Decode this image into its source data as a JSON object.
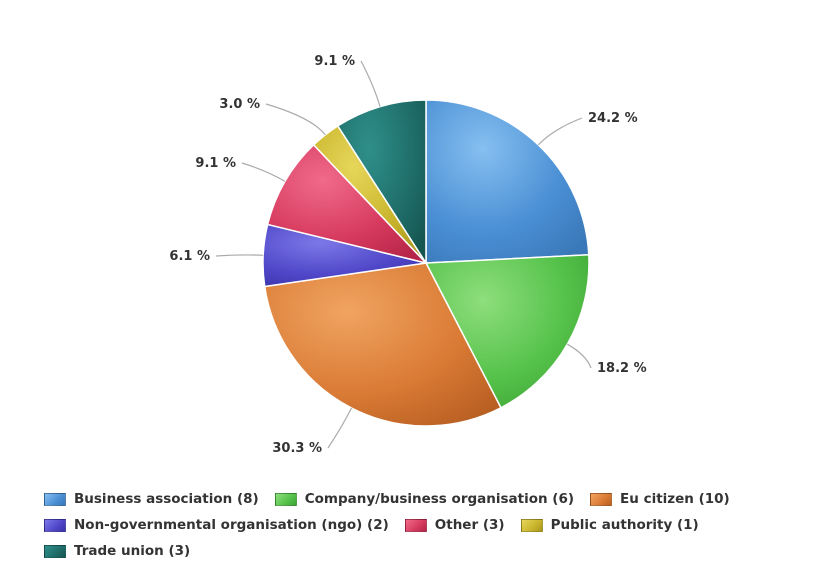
{
  "chart_data": {
    "type": "pie",
    "slices": [
      {
        "name": "Business association (8)",
        "value": 24.2,
        "label": "24.2 %",
        "color": "#4a8fd4",
        "color_light": "#86bff0",
        "color_dark": "#3a78b8"
      },
      {
        "name": "Company/business organisation (6)",
        "value": 18.2,
        "label": "18.2 %",
        "color": "#55c24a",
        "color_light": "#8ede7d",
        "color_dark": "#3ea335"
      },
      {
        "name": "Eu citizen (10)",
        "value": 30.3,
        "label": "30.3 %",
        "color": "#d97a35",
        "color_light": "#f0a460",
        "color_dark": "#b85f22"
      },
      {
        "name": "Non-governmental organisation (ngo) (2)",
        "value": 6.1,
        "label": "6.1 %",
        "color": "#4f47c8",
        "color_light": "#7d78e8",
        "color_dark": "#3a33a8"
      },
      {
        "name": "Other (3)",
        "value": 9.1,
        "label": "9.1 %",
        "color": "#d63a5e",
        "color_light": "#f06a8a",
        "color_dark": "#b52548"
      },
      {
        "name": "Public authority (1)",
        "value": 3.0,
        "label": "3.0 %",
        "color": "#c9b52c",
        "color_light": "#e6d65a",
        "color_dark": "#a8961d"
      },
      {
        "name": "Trade union (3)",
        "value": 9.1,
        "label": "9.1 %",
        "color": "#1f6e6a",
        "color_light": "#2f8f8a",
        "color_dark": "#155550"
      }
    ],
    "start_angle": "12 o'clock",
    "direction": "clockwise",
    "legend_position": "bottom"
  },
  "legend": {
    "rows": [
      [
        0,
        1,
        2
      ],
      [
        3,
        4,
        5
      ],
      [
        6
      ]
    ]
  }
}
